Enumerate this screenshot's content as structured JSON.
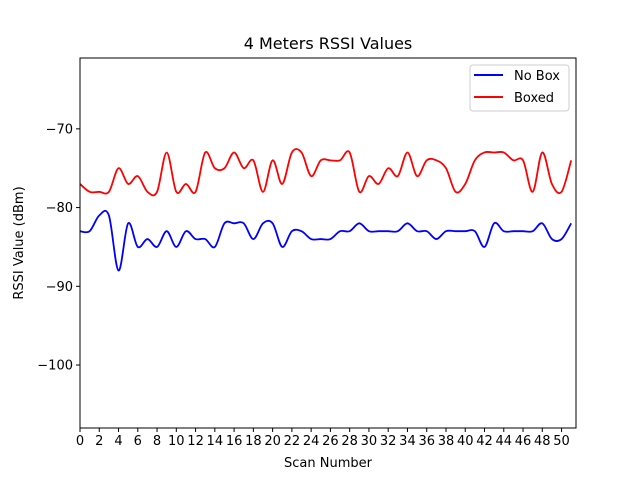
{
  "chart_data": {
    "type": "line",
    "title": "4 Meters RSSI Values",
    "xlabel": "Scan Number",
    "ylabel": "RSSI Value (dBm)",
    "xlim": [
      0,
      51.5
    ],
    "ylim": [
      -108,
      -61
    ],
    "x_ticks": [
      0,
      2,
      4,
      6,
      8,
      10,
      12,
      14,
      16,
      18,
      20,
      22,
      24,
      26,
      28,
      30,
      32,
      34,
      36,
      38,
      40,
      42,
      44,
      46,
      48,
      50
    ],
    "y_ticks": [
      -100,
      -90,
      -80,
      -70
    ],
    "grid": false,
    "legend_position": "top-right",
    "x": [
      0,
      1,
      2,
      3,
      4,
      5,
      6,
      7,
      8,
      9,
      10,
      11,
      12,
      13,
      14,
      15,
      16,
      17,
      18,
      19,
      20,
      21,
      22,
      23,
      24,
      25,
      26,
      27,
      28,
      29,
      30,
      31,
      32,
      33,
      34,
      35,
      36,
      37,
      38,
      39,
      40,
      41,
      42,
      43,
      44,
      45,
      46,
      47,
      48,
      49,
      50,
      51
    ],
    "series": [
      {
        "name": "No Box",
        "color": "#0000ff",
        "values": [
          -83,
          -83,
          -81,
          -81,
          -88,
          -82,
          -85,
          -84,
          -85,
          -83,
          -85,
          -83,
          -84,
          -84,
          -85,
          -82,
          -82,
          -82,
          -84,
          -82,
          -82,
          -85,
          -83,
          -83,
          -84,
          -84,
          -84,
          -83,
          -83,
          -82,
          -83,
          -83,
          -83,
          -83,
          -82,
          -83,
          -83,
          -84,
          -83,
          -83,
          -83,
          -83,
          -85,
          -82,
          -83,
          -83,
          -83,
          -83,
          -82,
          -84,
          -84,
          -82
        ]
      },
      {
        "name": "Boxed",
        "color": "#ff0000",
        "values": [
          -77,
          -78,
          -78,
          -78,
          -75,
          -77,
          -76,
          -78,
          -78,
          -73,
          -78,
          -77,
          -78,
          -73,
          -75,
          -75,
          -73,
          -75,
          -74,
          -78,
          -74,
          -77,
          -73,
          -73,
          -76,
          -74,
          -74,
          -74,
          -73,
          -78,
          -76,
          -77,
          -75,
          -76,
          -73,
          -76,
          -74,
          -74,
          -75,
          -78,
          -77,
          -74,
          -73,
          -73,
          -73,
          -74,
          -74,
          -78,
          -73,
          -77,
          -78,
          -74
        ]
      }
    ]
  }
}
